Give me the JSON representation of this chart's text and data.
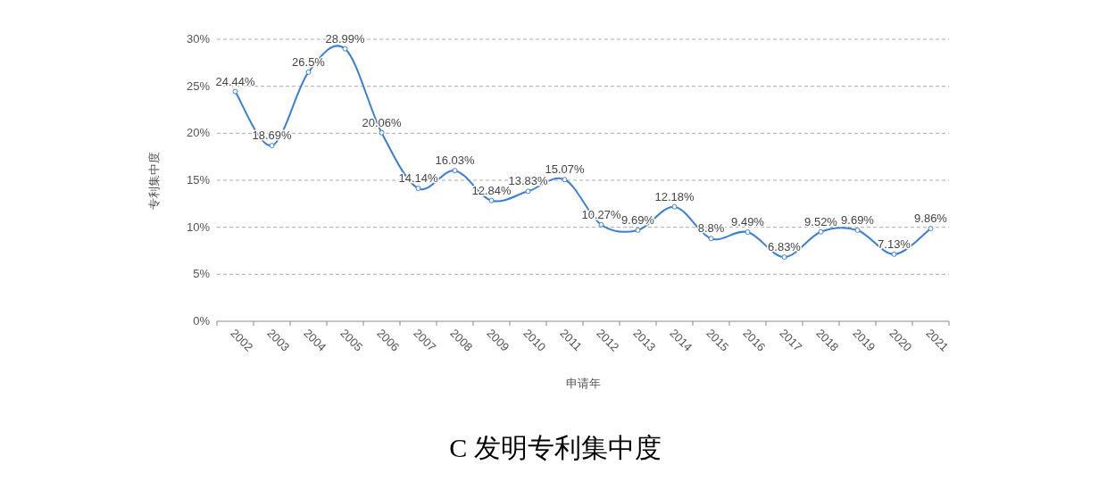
{
  "chart_data": {
    "type": "line",
    "title": "C 发明专利集中度",
    "xlabel": "申请年",
    "ylabel": "专利集中度",
    "categories": [
      "2002",
      "2003",
      "2004",
      "2005",
      "2006",
      "2007",
      "2008",
      "2009",
      "2010",
      "2011",
      "2012",
      "2013",
      "2014",
      "2015",
      "2016",
      "2017",
      "2018",
      "2019",
      "2020",
      "2021"
    ],
    "series": [
      {
        "color": "#3b7fd4",
        "values": [
          24.44,
          18.69,
          26.5,
          28.99,
          20.06,
          14.14,
          16.03,
          12.84,
          13.83,
          15.07,
          10.27,
          9.69,
          12.18,
          8.8,
          9.49,
          6.83,
          9.52,
          9.69,
          7.13,
          9.86
        ],
        "value_labels": [
          "24.44%",
          "18.69%",
          "26.5%",
          "28.99%",
          "20.06%",
          "14.14%",
          "16.03%",
          "12.84%",
          "13.83%",
          "15.07%",
          "10.27%",
          "9.69%",
          "12.18%",
          "8.8%",
          "9.49%",
          "6.83%",
          "9.52%",
          "9.69%",
          "7.13%",
          "9.86%"
        ]
      }
    ],
    "ylim": [
      0,
      30
    ],
    "yticks": [
      {
        "value": 0,
        "label": "0%"
      },
      {
        "value": 5,
        "label": "5%"
      },
      {
        "value": 10,
        "label": "10%"
      },
      {
        "value": 15,
        "label": "15%"
      },
      {
        "value": 20,
        "label": "20%"
      },
      {
        "value": 25,
        "label": "25%"
      },
      {
        "value": 30,
        "label": "30%"
      }
    ],
    "grid": "y",
    "marker": "circle",
    "line_style": "solid"
  }
}
